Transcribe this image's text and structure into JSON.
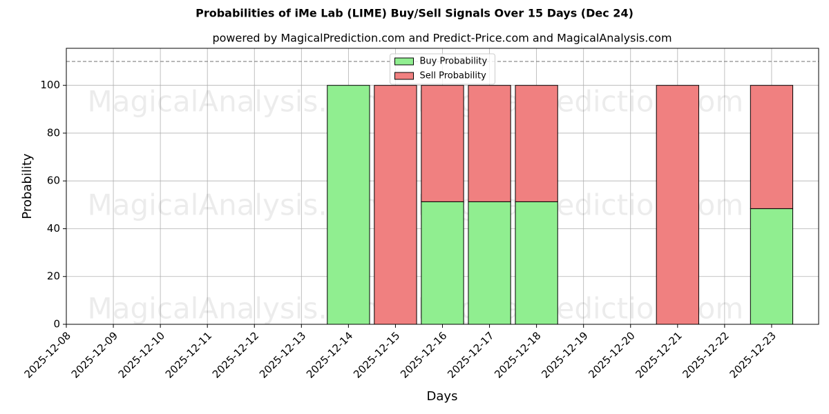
{
  "chart_data": {
    "type": "stacked_bar",
    "title": "Probabilities of iMe Lab (LIME) Buy/Sell Signals Over 15 Days (Dec 24)",
    "subtitle": "powered by MagicalPrediction.com and Predict-Price.com and MagicalAnalysis.com",
    "xlabel": "Days",
    "ylabel": "Probability",
    "watermarks": [
      "MagicalAnalysis.com",
      "MagicalPrediction.com"
    ],
    "x": [
      "2025-12-14",
      "2025-12-15",
      "2025-12-16",
      "2025-12-17",
      "2025-12-18",
      "2025-12-21",
      "2025-12-23"
    ],
    "series": [
      {
        "name": "Buy Probability",
        "color": "#90ee90",
        "values": [
          100,
          0,
          51.3,
          51.3,
          51.3,
          0,
          48.4
        ]
      },
      {
        "name": "Sell Probability",
        "color": "#f08080",
        "values": [
          0,
          100,
          48.7,
          48.7,
          48.7,
          100,
          51.6
        ]
      }
    ],
    "xlim": [
      "2025-12-08",
      "2025-12-24"
    ],
    "xticks": [
      "2025-12-08",
      "2025-12-09",
      "2025-12-10",
      "2025-12-11",
      "2025-12-12",
      "2025-12-13",
      "2025-12-14",
      "2025-12-15",
      "2025-12-16",
      "2025-12-17",
      "2025-12-18",
      "2025-12-19",
      "2025-12-20",
      "2025-12-21",
      "2025-12-22",
      "2025-12-23"
    ],
    "ylim": [
      0,
      115.5
    ],
    "yticks": [
      0,
      20,
      40,
      60,
      80,
      100
    ],
    "threshold_line": 110,
    "grid": true,
    "legend": "top-center"
  }
}
